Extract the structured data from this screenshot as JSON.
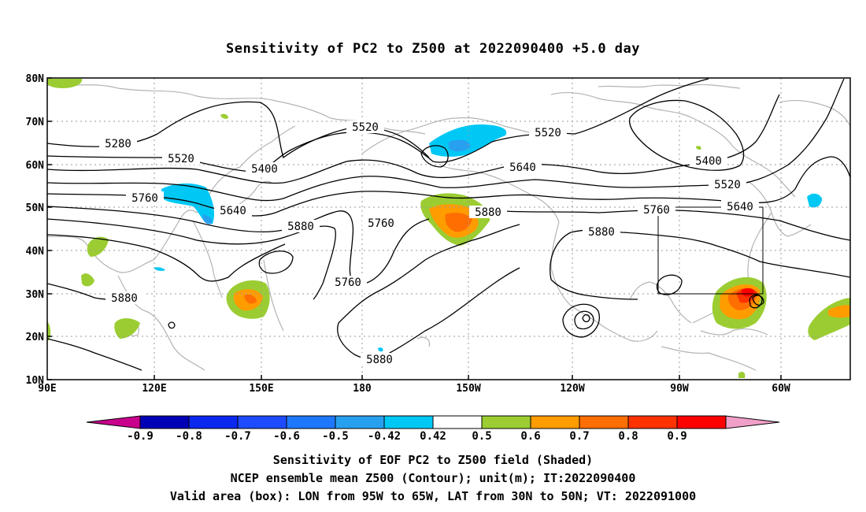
{
  "title": "Sensitivity of PC2 to Z500 at 2022090400 +5.0 day",
  "axes": {
    "lat_labels": [
      "80N",
      "70N",
      "60N",
      "50N",
      "40N",
      "30N",
      "20N",
      "10N"
    ],
    "lon_labels": [
      "90E",
      "120E",
      "150E",
      "180",
      "150W",
      "120W",
      "90W",
      "60W"
    ]
  },
  "contour_labels": [
    {
      "text": "5280"
    },
    {
      "text": "5520"
    },
    {
      "text": "5400"
    },
    {
      "text": "5760"
    },
    {
      "text": "5640"
    },
    {
      "text": "5880"
    },
    {
      "text": "5880"
    },
    {
      "text": "5520"
    },
    {
      "text": "5760"
    },
    {
      "text": "5760"
    },
    {
      "text": "5880"
    },
    {
      "text": "5520"
    },
    {
      "text": "5640"
    },
    {
      "text": "5880"
    },
    {
      "text": "5880"
    },
    {
      "text": "5400"
    },
    {
      "text": "5520"
    },
    {
      "text": "5760"
    },
    {
      "text": "5640"
    }
  ],
  "colorbar": {
    "labels": [
      "-0.9",
      "-0.8",
      "-0.7",
      "-0.6",
      "-0.5",
      "-0.42",
      "0.42",
      "0.5",
      "0.6",
      "0.7",
      "0.8",
      "0.9"
    ],
    "colors": [
      "#0000b4",
      "#0a28ee",
      "#1e4bff",
      "#1e78ff",
      "#28a0f0",
      "#00c8f5",
      "#ffffff",
      "#9bcd32",
      "#ff9c00",
      "#ff6e00",
      "#ff3200",
      "#ff0000"
    ],
    "left_arrow_color": "#c8008c",
    "right_arrow_color": "#f0a0c8"
  },
  "captions": {
    "line1": "Sensitivity of EOF PC2 to Z500 field (Shaded)",
    "line2": "NCEP ensemble mean Z500 (Contour); unit(m); IT:2022090400",
    "line3": "Valid area (box): LON from 95W to 65W, LAT from 30N to 50N; VT: 2022091000"
  },
  "valid_box": {
    "lon_min": -95,
    "lon_max": -65,
    "lat_min": 30,
    "lat_max": 50
  }
}
